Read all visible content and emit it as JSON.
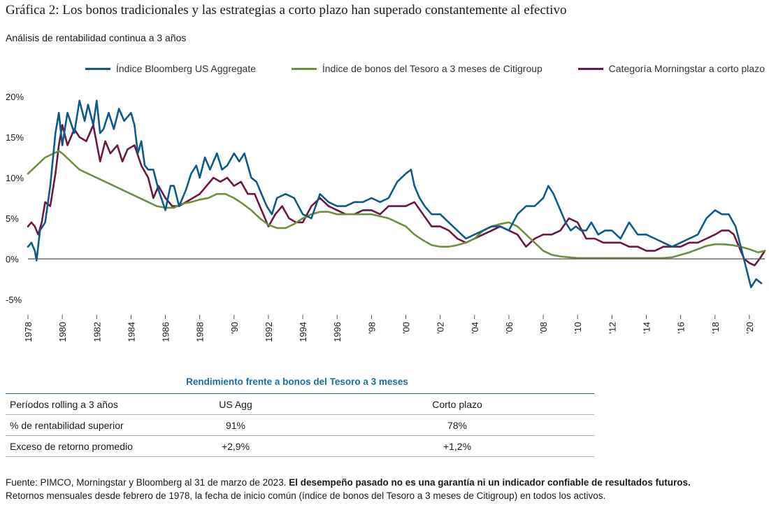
{
  "title": "Gráfica 2: Los bonos tradicionales y las estrategias a corto plazo han superado constantemente al efectivo",
  "subtitle": "Análisis de rentabilidad continua a 3 años",
  "legend": [
    {
      "label": "Índice Bloomberg US Aggregate",
      "color": "#0e5a8a"
    },
    {
      "label": "Índice de bonos del Tesoro a 3 meses de Citigroup",
      "color": "#6e8f3c"
    },
    {
      "label": "Categoría Morningstar a corto plazo",
      "color": "#6b1846"
    }
  ],
  "chart_data": {
    "type": "line",
    "ylim": [
      -5,
      20
    ],
    "yticks": [
      20,
      15,
      10,
      5,
      0,
      -5
    ],
    "ytick_labels": [
      "20%",
      "15%",
      "10%",
      "5%",
      "0%",
      "-5%"
    ],
    "xlim": [
      1978,
      2020.9
    ],
    "xticks": [
      1978,
      1980,
      1982,
      1984,
      1986,
      1988,
      1990,
      1992,
      1994,
      1996,
      1998,
      2000,
      2002,
      2004,
      2006,
      2008,
      2010,
      2012,
      2014,
      2016,
      2018,
      2020
    ],
    "xtick_labels": [
      "1978",
      "1980",
      "1982",
      "1984",
      "1986",
      "1988",
      "'90",
      "1992",
      "1994",
      "1996",
      "'98",
      "'00",
      "'02",
      "'04",
      "'06",
      "'08",
      "'10",
      "'12",
      "'14",
      "'16",
      "'18",
      "'20"
    ],
    "series": [
      {
        "name": "Índice Bloomberg US Aggregate",
        "color": "#0e5a8a",
        "x": [
          1978.0,
          1978.2,
          1978.4,
          1978.5,
          1978.7,
          1979.0,
          1979.3,
          1979.6,
          1979.8,
          1980.0,
          1980.3,
          1980.7,
          1981.0,
          1981.3,
          1981.5,
          1981.8,
          1982.0,
          1982.2,
          1982.4,
          1982.7,
          1983.0,
          1983.3,
          1983.6,
          1984.0,
          1984.2,
          1984.4,
          1984.6,
          1984.8,
          1985.0,
          1985.3,
          1985.6,
          1986.0,
          1986.3,
          1986.5,
          1986.8,
          1987.2,
          1987.5,
          1987.8,
          1988.0,
          1988.3,
          1988.6,
          1989.0,
          1989.3,
          1989.6,
          1990.0,
          1990.3,
          1990.6,
          1991.0,
          1991.3,
          1991.6,
          1991.9,
          1992.2,
          1992.5,
          1993.0,
          1993.5,
          1994.0,
          1994.5,
          1995.0,
          1995.5,
          1996.0,
          1996.5,
          1997.0,
          1997.5,
          1998.0,
          1998.5,
          1999.0,
          1999.5,
          2000.0,
          2000.3,
          2000.5,
          2000.8,
          2001.1,
          2001.5,
          2002.0,
          2002.5,
          2003.0,
          2003.5,
          2004.0,
          2004.5,
          2005.0,
          2005.5,
          2006.0,
          2006.5,
          2007.0,
          2007.5,
          2008.0,
          2008.3,
          2008.6,
          2009.0,
          2009.3,
          2009.6,
          2009.9,
          2010.2,
          2010.5,
          2010.8,
          2011.2,
          2011.6,
          2012.0,
          2012.5,
          2013.0,
          2013.5,
          2014.0,
          2014.5,
          2015.0,
          2015.5,
          2016.0,
          2016.5,
          2017.0,
          2017.5,
          2018.0,
          2018.4,
          2018.8,
          2019.2,
          2019.5,
          2019.8,
          2020.1,
          2020.4,
          2020.7
        ],
        "y": [
          1.5,
          2.0,
          1.0,
          -0.2,
          3.5,
          4.5,
          9.0,
          15.5,
          18.0,
          14.0,
          18.0,
          15.5,
          19.5,
          17.0,
          19.0,
          16.5,
          19.5,
          15.5,
          16.0,
          18.0,
          16.0,
          18.5,
          17.0,
          18.0,
          16.5,
          13.0,
          14.5,
          11.5,
          11.0,
          11.0,
          8.5,
          6.0,
          9.0,
          9.0,
          6.5,
          8.5,
          10.5,
          11.5,
          10.0,
          12.5,
          11.0,
          13.0,
          11.0,
          11.5,
          13.0,
          12.0,
          13.0,
          10.0,
          9.5,
          8.0,
          6.5,
          5.5,
          7.5,
          8.0,
          7.5,
          5.5,
          5.0,
          8.0,
          7.0,
          6.5,
          6.5,
          7.0,
          7.0,
          7.5,
          7.0,
          7.5,
          9.5,
          10.5,
          11.0,
          9.0,
          7.5,
          6.5,
          5.5,
          5.5,
          4.5,
          3.5,
          2.5,
          3.0,
          3.5,
          4.0,
          4.0,
          3.5,
          5.5,
          6.5,
          6.5,
          7.5,
          9.0,
          8.0,
          6.0,
          4.5,
          3.5,
          4.0,
          3.5,
          3.5,
          4.5,
          3.0,
          3.5,
          3.5,
          2.5,
          4.5,
          3.0,
          3.0,
          2.5,
          2.0,
          1.5,
          2.0,
          2.5,
          3.0,
          5.0,
          6.0,
          5.5,
          5.5,
          4.0,
          1.5,
          -1.0,
          -3.5,
          -2.5,
          -3.0
        ]
      },
      {
        "name": "Índice de bonos del Tesoro a 3 meses de Citigroup",
        "color": "#6e8f3c",
        "x": [
          1978.0,
          1978.5,
          1979.0,
          1979.5,
          1979.8,
          1980.0,
          1980.5,
          1981.0,
          1982.0,
          1983.0,
          1984.0,
          1985.0,
          1985.5,
          1986.0,
          1986.5,
          1987.0,
          1987.5,
          1988.0,
          1988.5,
          1989.0,
          1989.5,
          1990.0,
          1990.5,
          1991.0,
          1991.5,
          1992.0,
          1992.5,
          1993.0,
          1993.5,
          1994.0,
          1994.5,
          1995.0,
          1995.5,
          1996.0,
          1997.0,
          1998.0,
          1999.0,
          2000.0,
          2000.5,
          2001.0,
          2001.5,
          2002.0,
          2002.5,
          2003.0,
          2003.5,
          2004.0,
          2004.5,
          2005.0,
          2005.5,
          2006.0,
          2006.5,
          2007.0,
          2007.5,
          2008.0,
          2008.5,
          2009.0,
          2009.5,
          2010.0,
          2011.0,
          2012.0,
          2013.0,
          2014.0,
          2015.0,
          2015.5,
          2016.0,
          2016.5,
          2017.0,
          2017.5,
          2018.0,
          2018.5,
          2019.0,
          2019.5,
          2020.0,
          2020.5,
          2020.9
        ],
        "y": [
          10.5,
          11.5,
          12.5,
          13.0,
          13.3,
          13.0,
          12.0,
          11.0,
          10.0,
          9.0,
          8.0,
          7.0,
          6.5,
          6.3,
          6.3,
          6.8,
          7.0,
          7.3,
          7.5,
          8.0,
          8.0,
          7.5,
          6.8,
          6.0,
          5.0,
          4.2,
          3.8,
          3.8,
          4.3,
          5.0,
          5.5,
          5.8,
          5.8,
          5.5,
          5.5,
          5.5,
          5.0,
          4.0,
          3.0,
          2.3,
          1.7,
          1.5,
          1.5,
          1.7,
          2.0,
          2.5,
          3.5,
          4.0,
          4.3,
          4.5,
          4.0,
          3.0,
          2.0,
          1.0,
          0.5,
          0.3,
          0.2,
          0.1,
          0.1,
          0.1,
          0.1,
          0.1,
          0.1,
          0.2,
          0.5,
          0.8,
          1.2,
          1.6,
          1.8,
          1.8,
          1.7,
          1.5,
          1.2,
          0.8,
          1.0
        ]
      },
      {
        "name": "Categoría Morningstar a corto plazo",
        "color": "#6b1846",
        "x": [
          1978.0,
          1978.2,
          1978.4,
          1978.6,
          1978.8,
          1979.0,
          1979.3,
          1979.6,
          1979.8,
          1980.0,
          1980.3,
          1980.7,
          1981.0,
          1981.4,
          1981.8,
          1982.2,
          1982.5,
          1982.8,
          1983.2,
          1983.5,
          1983.8,
          1984.2,
          1984.6,
          1985.0,
          1985.3,
          1985.6,
          1986.0,
          1986.4,
          1986.8,
          1987.2,
          1987.6,
          1988.0,
          1988.4,
          1988.8,
          1989.2,
          1989.6,
          1990.0,
          1990.4,
          1990.8,
          1991.2,
          1991.6,
          1992.0,
          1992.4,
          1992.8,
          1993.2,
          1993.6,
          1994.0,
          1994.5,
          1995.0,
          1995.5,
          1996.0,
          1996.5,
          1997.0,
          1997.5,
          1998.0,
          1998.5,
          1999.0,
          1999.5,
          2000.0,
          2000.5,
          2001.0,
          2001.5,
          2002.0,
          2002.5,
          2003.0,
          2003.5,
          2004.0,
          2004.5,
          2005.0,
          2005.5,
          2006.0,
          2006.5,
          2007.0,
          2007.5,
          2008.0,
          2008.5,
          2009.0,
          2009.5,
          2010.0,
          2010.5,
          2011.0,
          2011.5,
          2012.0,
          2012.5,
          2013.0,
          2013.5,
          2014.0,
          2014.5,
          2015.0,
          2015.5,
          2016.0,
          2016.5,
          2017.0,
          2017.5,
          2018.0,
          2018.4,
          2018.8,
          2019.1,
          2019.4,
          2019.7,
          2020.0,
          2020.3,
          2020.6,
          2020.9
        ],
        "y": [
          4.0,
          4.5,
          4.0,
          3.0,
          4.5,
          7.0,
          6.5,
          10.5,
          14.0,
          16.5,
          14.0,
          16.0,
          15.0,
          14.5,
          16.5,
          12.0,
          14.5,
          13.0,
          14.0,
          12.0,
          13.5,
          14.0,
          11.5,
          10.0,
          7.5,
          9.0,
          7.5,
          6.5,
          6.5,
          7.0,
          7.5,
          8.0,
          9.0,
          10.0,
          9.5,
          10.0,
          9.0,
          9.5,
          8.0,
          8.0,
          6.0,
          4.0,
          5.5,
          6.5,
          5.0,
          4.5,
          4.5,
          6.5,
          7.5,
          6.5,
          6.0,
          5.5,
          5.5,
          6.0,
          6.0,
          5.5,
          6.5,
          6.5,
          6.5,
          7.0,
          5.5,
          4.0,
          4.0,
          3.5,
          2.5,
          2.0,
          2.5,
          3.0,
          3.5,
          4.0,
          3.5,
          3.0,
          1.5,
          2.5,
          3.0,
          3.0,
          3.5,
          5.0,
          4.5,
          2.5,
          2.5,
          2.0,
          2.0,
          2.0,
          1.5,
          1.5,
          1.0,
          1.0,
          1.5,
          1.5,
          1.5,
          2.0,
          2.0,
          2.5,
          3.0,
          3.5,
          3.5,
          3.0,
          1.5,
          0.0,
          -0.5,
          -0.8,
          0.0,
          1.0
        ]
      }
    ]
  },
  "table": {
    "title": "Rendimiento frente a bonos del Tesoro a 3 meses",
    "rows": [
      [
        "Períodos rolling a 3 años",
        "US Agg",
        "Corto plazo"
      ],
      [
        "% de rentabilidad superior",
        "91%",
        "78%"
      ],
      [
        "Exceso de retorno promedio",
        "+2,9%",
        "+1,2%"
      ]
    ]
  },
  "footer": {
    "source": "Fuente: PIMCO, Morningstar y Bloomberg al 31 de marzo de 2023. ",
    "disclaimer": "El desempeño pasado no es una garantía ni un indicador confiable de resultados futuros.",
    "note": "Retornos mensuales desde febrero de 1978, la fecha de inicio común (índice de bonos del Tesoro a 3 meses de Citigroup) en todos los activos."
  }
}
